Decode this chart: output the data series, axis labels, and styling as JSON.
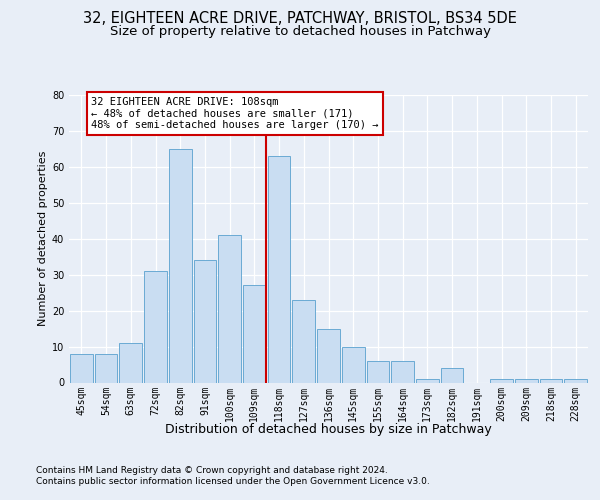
{
  "title1": "32, EIGHTEEN ACRE DRIVE, PATCHWAY, BRISTOL, BS34 5DE",
  "title2": "Size of property relative to detached houses in Patchway",
  "xlabel": "Distribution of detached houses by size in Patchway",
  "ylabel": "Number of detached properties",
  "footnote1": "Contains HM Land Registry data © Crown copyright and database right 2024.",
  "footnote2": "Contains public sector information licensed under the Open Government Licence v3.0.",
  "categories": [
    "45sqm",
    "54sqm",
    "63sqm",
    "72sqm",
    "82sqm",
    "91sqm",
    "100sqm",
    "109sqm",
    "118sqm",
    "127sqm",
    "136sqm",
    "145sqm",
    "155sqm",
    "164sqm",
    "173sqm",
    "182sqm",
    "191sqm",
    "200sqm",
    "209sqm",
    "218sqm",
    "228sqm"
  ],
  "values": [
    8,
    8,
    11,
    31,
    65,
    34,
    41,
    27,
    63,
    23,
    15,
    10,
    6,
    6,
    1,
    4,
    0,
    1,
    1,
    1,
    1
  ],
  "bar_color": "#c9ddf2",
  "bar_edge_color": "#6aaad4",
  "marker_index": 7,
  "marker_color": "#cc0000",
  "annotation_line1": "32 EIGHTEEN ACRE DRIVE: 108sqm",
  "annotation_line2": "← 48% of detached houses are smaller (171)",
  "annotation_line3": "48% of semi-detached houses are larger (170) →",
  "annotation_box_color": "#ffffff",
  "annotation_box_edge": "#cc0000",
  "ylim": [
    0,
    80
  ],
  "background_color": "#e8eef7",
  "grid_color": "#ffffff",
  "title1_fontsize": 10.5,
  "title2_fontsize": 9.5,
  "xlabel_fontsize": 9,
  "ylabel_fontsize": 8,
  "tick_fontsize": 7,
  "annot_fontsize": 7.5,
  "footnote_fontsize": 6.5
}
